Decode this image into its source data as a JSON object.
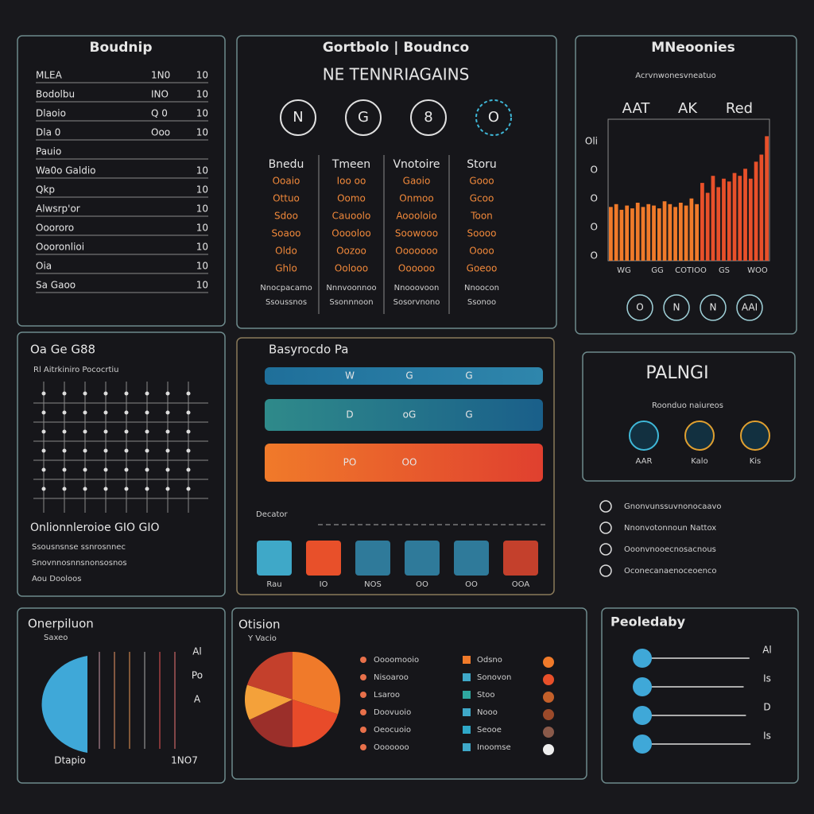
{
  "ledger": {
    "title": "Boudnip",
    "rows": [
      [
        "MLEA",
        "1N0",
        "10"
      ],
      [
        "Bodolbu",
        "INO",
        "10"
      ],
      [
        "Dlaoio",
        "Q 0",
        "10"
      ],
      [
        "Dla 0",
        "Ooo",
        "10"
      ],
      [
        "Pauio"
      ],
      [
        "Wa0o Galdio",
        "10"
      ],
      [
        "Qkp",
        "10"
      ],
      [
        "Alwsrp'or",
        "10"
      ],
      [
        "Ooororo",
        "10"
      ],
      [
        "Oooronlioi",
        "10"
      ],
      [
        "Oia",
        "10"
      ],
      [
        "Sa Gaoo",
        "10"
      ]
    ]
  },
  "matrix": {
    "title": "Gortbolo | Boudnco",
    "subtitle": "NE TENNRIAGAINS",
    "icons": [
      "N",
      "G",
      "8",
      "O"
    ],
    "columns": [
      {
        "header": "Bnedu",
        "rows": [
          "Ooaio",
          "Ottuo",
          "Sdoo",
          "Soaoo",
          "Oldo",
          "Ghlo"
        ],
        "notes": [
          "Nnocpacamo",
          "Ssoussnos"
        ]
      },
      {
        "header": "Tmeen",
        "rows": [
          "Ioo oo",
          "Oomo",
          "Cauoolo",
          "Ooooloo",
          "Oozoo",
          "Oolooo"
        ],
        "notes": [
          "Nnnvoonnoo",
          "Ssonnnoon"
        ]
      },
      {
        "header": "Vnotoire",
        "rows": [
          "Gaoio",
          "Onmoo",
          "Aoooloio",
          "Soowooo",
          "Ooooooo",
          "Oooooo"
        ],
        "notes": [
          "Nnooovoon",
          "Sosorvnono"
        ]
      },
      {
        "header": "Storu",
        "rows": [
          "Gooo",
          "Gcoo",
          "Toon",
          "Soooo",
          "Oooo",
          "Goeoo"
        ],
        "notes": [
          "Nnoocon",
          "Ssonoo"
        ]
      }
    ]
  },
  "chart_data": {
    "type": "bar",
    "title": "MNeoonies",
    "subtitle": "Acrvnwonesvneatuo",
    "series_labels": [
      "AAT",
      "AK",
      "Red"
    ],
    "values": [
      38,
      40,
      36,
      39,
      37,
      41,
      38,
      40,
      39,
      37,
      42,
      40,
      38,
      41,
      39,
      44,
      40,
      55,
      48,
      60,
      52,
      58,
      56,
      62,
      60,
      65,
      58,
      70,
      75,
      88
    ],
    "ylim": [
      0,
      100
    ],
    "y_labels": [
      "Oli",
      "O",
      "O",
      "O",
      "O"
    ],
    "x_labels": [
      "WG",
      "GG",
      "COTIOO",
      "GS",
      "WOO"
    ],
    "icons": [
      "O",
      "N",
      "N",
      "AAI"
    ]
  },
  "grid_panel": {
    "title": "Oa Ge G88",
    "header": "Rl Aitrkiniro  Pococrtiu",
    "footer": "Onlionnleroioe GIO GIO",
    "lines": [
      "Ssousnsnse ssnrosnnec",
      "Snovnnosnnsnonsosnos",
      "Aou Dooloos"
    ]
  },
  "progress": {
    "title": "Basyrocdo Pa",
    "bars": [
      [
        "W",
        "G",
        "G"
      ],
      [
        "D",
        "oG",
        "G"
      ],
      [
        "PO",
        "OO"
      ]
    ],
    "label": "Decator",
    "tiles": [
      "Rau",
      "IO",
      "NOS",
      "OO",
      "OO",
      "OOA"
    ]
  },
  "status": {
    "title": "PALNGI",
    "subtitle": "Roonduo naiureos",
    "icons": [
      "AAR",
      "Kalo",
      "Kis"
    ],
    "rows": [
      "Gnonvunssuvnonocaavo",
      "Nnonvotonnoun Nattox",
      "Ooonvnooecnosacnous",
      "Oconecanaenoceoenco"
    ]
  },
  "distribution": {
    "title": "Onerpiluon",
    "subtitle": "Saxeo",
    "side": [
      "Al",
      "Po",
      "A"
    ],
    "bottom": [
      "Dtapio",
      "1NO7"
    ]
  },
  "pie_chart": {
    "type": "pie",
    "title": "Otision",
    "subtitle": "Y Vacio",
    "values": [
      30,
      20,
      18,
      12,
      20
    ],
    "colors": [
      "#f07a2a",
      "#e84b2a",
      "#9b2f2a",
      "#f4a13a",
      "#c4402c"
    ],
    "legend_left": [
      "Oooomooio",
      "Nisoaroo",
      "Lsaroo",
      "Doovuoio",
      "Oeocuoio",
      "Ooooooo"
    ],
    "legend_right": [
      "Odsno",
      "Sonovon",
      "Stoo",
      "Nooo",
      "Seooe",
      "Inoomse"
    ]
  },
  "lollipop": {
    "type": "bar",
    "title": "Peoledaby",
    "values": [
      95,
      90,
      92,
      96
    ],
    "xlim": [
      0,
      100
    ],
    "labels": [
      "Al",
      "Is",
      "D",
      "Is"
    ]
  }
}
